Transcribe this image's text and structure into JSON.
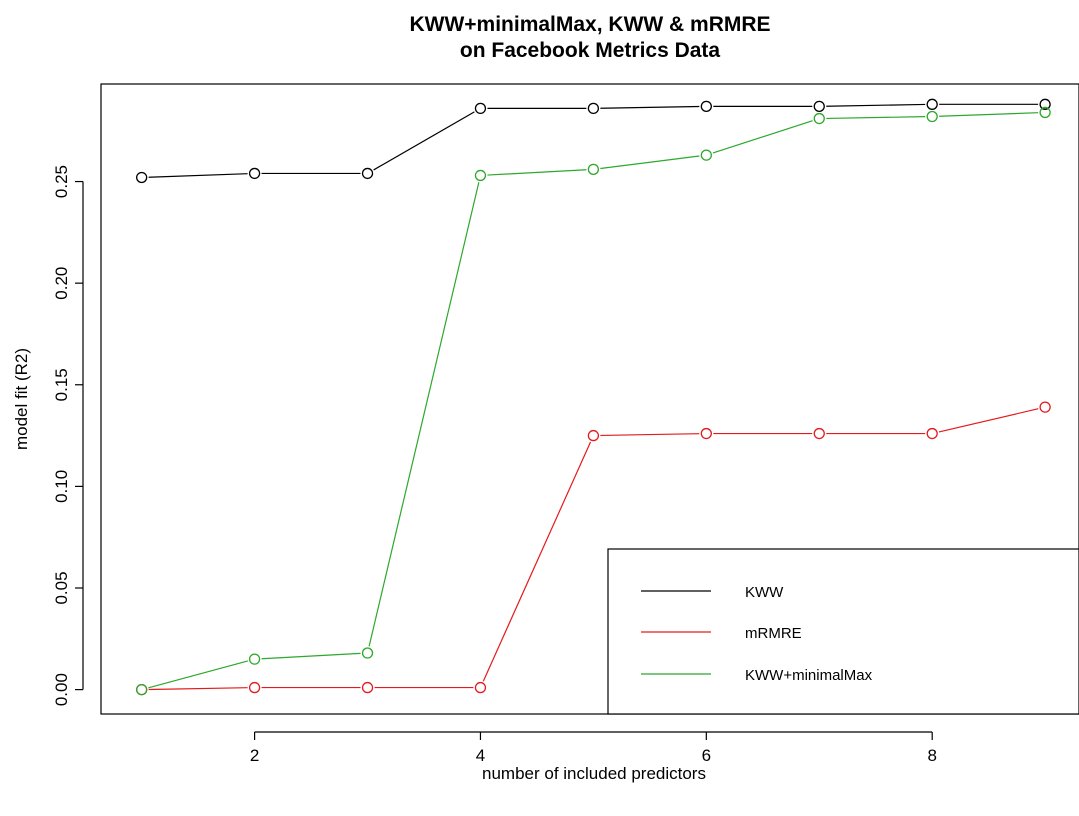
{
  "chart_data": {
    "type": "line",
    "title": [
      "KWW+minimalMax, KWW & mRMRE",
      "on Facebook Metrics Data"
    ],
    "xlabel": "number of included predictors",
    "ylabel": "model fit (R2)",
    "xlim": [
      0.64,
      9.3
    ],
    "ylim": [
      -0.012,
      0.298
    ],
    "x_ticks": [
      2,
      4,
      6,
      8
    ],
    "x_tick_labels": [
      "2",
      "4",
      "6",
      "8"
    ],
    "y_ticks": [
      0.0,
      0.05,
      0.1,
      0.15,
      0.2,
      0.25
    ],
    "y_tick_labels": [
      "0.00",
      "0.05",
      "0.10",
      "0.15",
      "0.20",
      "0.25"
    ],
    "grid": false,
    "legend_position": "bottom-right",
    "x": [
      1,
      2,
      3,
      4,
      5,
      6,
      7,
      8,
      9
    ],
    "series": [
      {
        "name": "KWW",
        "color": "#000000",
        "values": [
          0.252,
          0.254,
          0.254,
          0.286,
          0.286,
          0.287,
          0.287,
          0.288,
          0.288
        ]
      },
      {
        "name": "mRMRE",
        "color": "#e41a1c",
        "values": [
          0.0,
          0.001,
          0.001,
          0.001,
          0.125,
          0.126,
          0.126,
          0.126,
          0.139
        ]
      },
      {
        "name": "KWW+minimalMax",
        "color": "#2ca82c",
        "values": [
          0.0,
          0.015,
          0.018,
          0.253,
          0.256,
          0.263,
          0.281,
          0.282,
          0.284
        ]
      }
    ],
    "legend_order": [
      "KWW",
      "mRMRE",
      "KWW+minimalMax"
    ]
  }
}
